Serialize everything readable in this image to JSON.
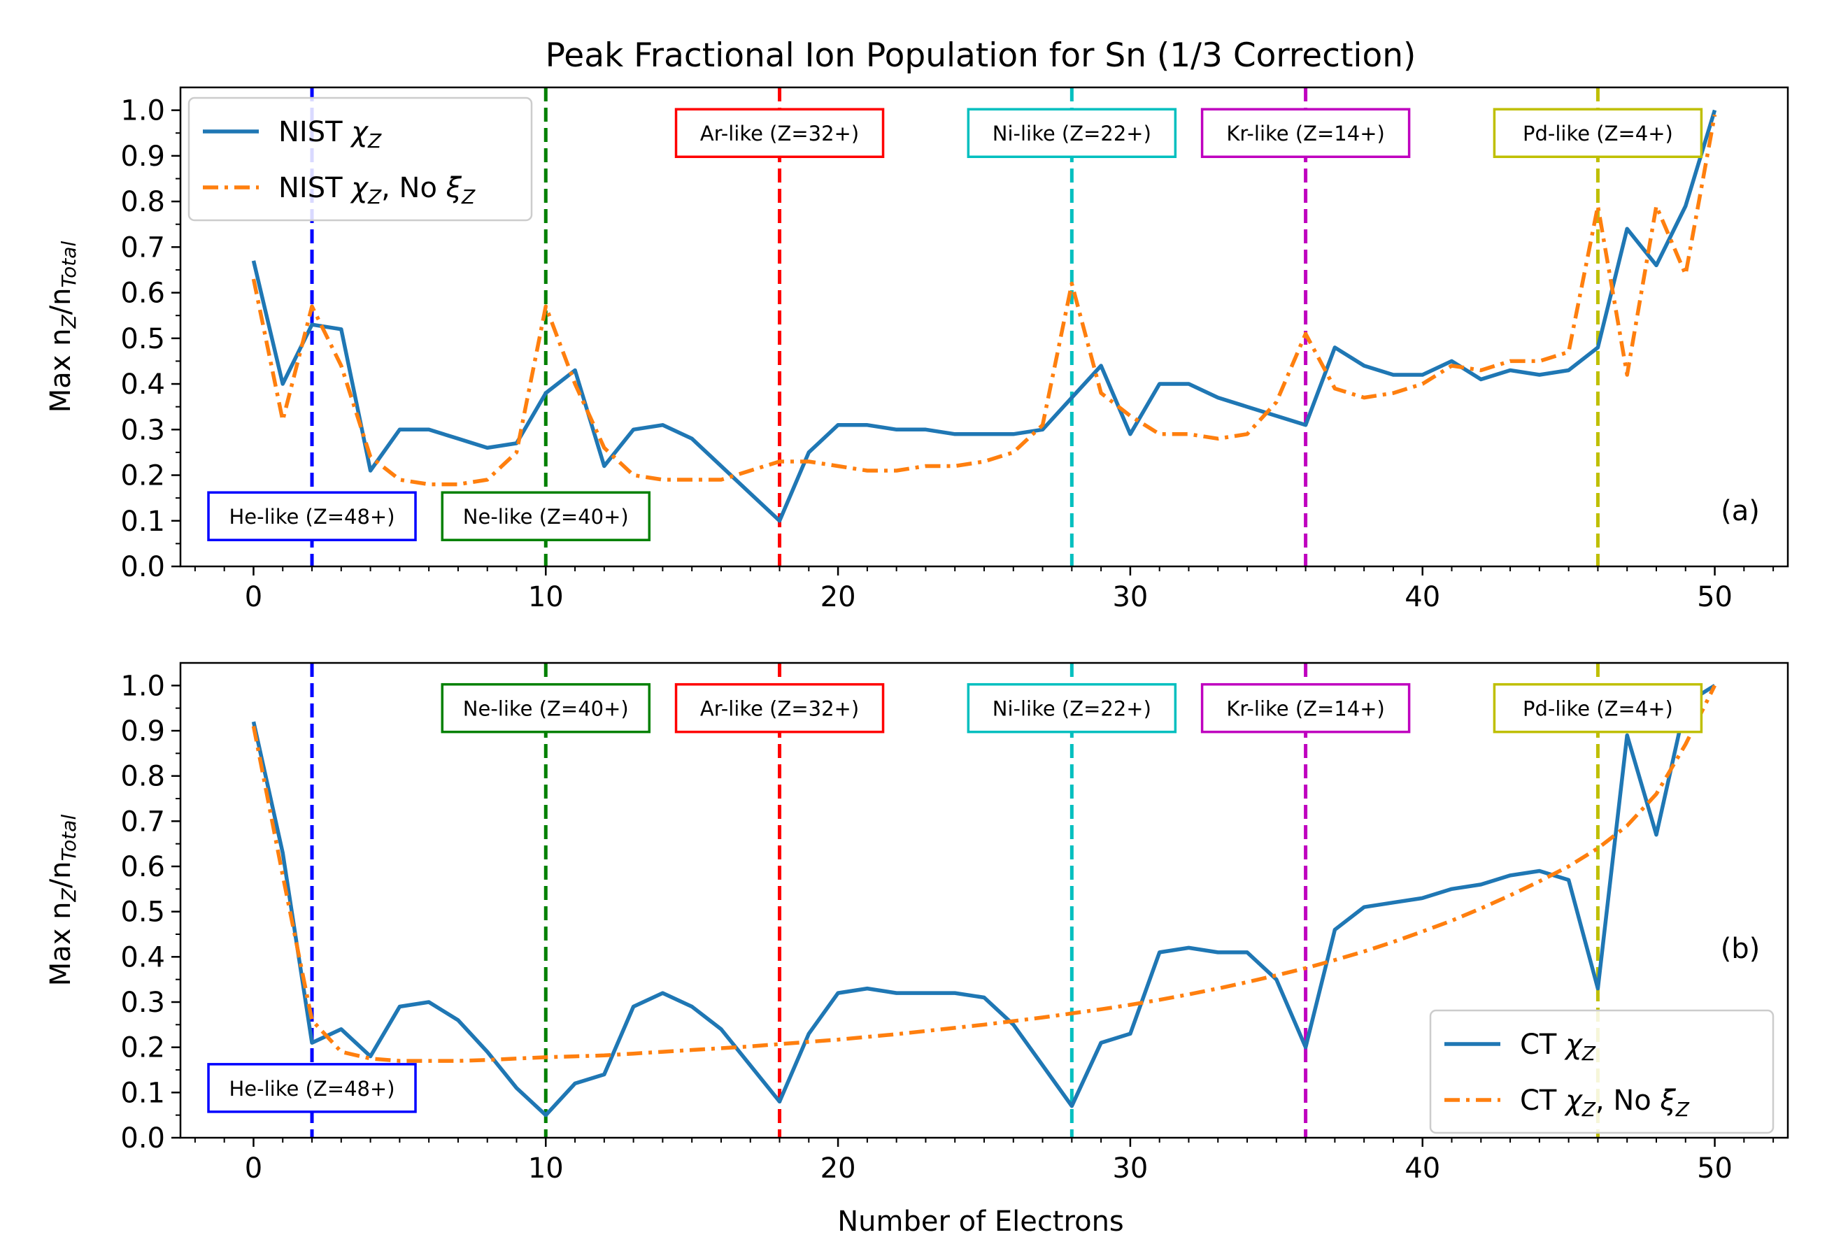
{
  "figure": {
    "title": "Peak Fractional Ion Population for Sn (1/3 Correction)",
    "xlabel": "Number of Electrons"
  },
  "colors": {
    "series_solid": "#1f77b4",
    "series_dashdot": "#ff7f0e",
    "He": "#0000ff",
    "Ne": "#008000",
    "Ar": "#ff0000",
    "Ni": "#00bfbf",
    "Kr": "#bf00bf",
    "Pd": "#bfbf00"
  },
  "chart_data": [
    {
      "type": "line",
      "panel_label": "(a)",
      "ylabel_main": "Max n",
      "ylabel_sub1": "Z",
      "ylabel_mid": "/n",
      "ylabel_sub2": "Total",
      "xlim": [
        -2.5,
        52.5
      ],
      "ylim": [
        0,
        1.05
      ],
      "xticks": [
        0,
        10,
        20,
        30,
        40,
        50
      ],
      "yticks": [
        0.0,
        0.1,
        0.2,
        0.3,
        0.4,
        0.5,
        0.6,
        0.7,
        0.8,
        0.9,
        1.0
      ],
      "ytick_labels": [
        "0.0",
        "0.1",
        "0.2",
        "0.3",
        "0.4",
        "0.5",
        "0.6",
        "0.7",
        "0.8",
        "0.9",
        "1.0"
      ],
      "legend_position": "upper-left",
      "series": [
        {
          "name": "NIST χZ",
          "legend_prefix": "NIST ",
          "legend_suffix": "",
          "style": "solid",
          "x": [
            0,
            1,
            2,
            3,
            4,
            5,
            6,
            7,
            8,
            9,
            10,
            11,
            12,
            13,
            14,
            15,
            16,
            17,
            18,
            19,
            20,
            21,
            22,
            23,
            24,
            25,
            26,
            27,
            28,
            29,
            30,
            31,
            32,
            33,
            34,
            35,
            36,
            37,
            38,
            39,
            40,
            41,
            42,
            43,
            44,
            45,
            46,
            47,
            48,
            49,
            50
          ],
          "y": [
            0.67,
            0.4,
            0.53,
            0.52,
            0.21,
            0.3,
            0.3,
            0.28,
            0.26,
            0.27,
            0.38,
            0.43,
            0.22,
            0.3,
            0.31,
            0.28,
            0.22,
            0.16,
            0.1,
            0.25,
            0.31,
            0.31,
            0.3,
            0.3,
            0.29,
            0.29,
            0.29,
            0.3,
            0.37,
            0.44,
            0.29,
            0.4,
            0.4,
            0.37,
            0.35,
            0.33,
            0.31,
            0.48,
            0.44,
            0.42,
            0.42,
            0.45,
            0.41,
            0.43,
            0.42,
            0.43,
            0.48,
            0.74,
            0.66,
            0.79,
            1.0
          ]
        },
        {
          "name": "NIST χZ, No ξZ",
          "legend_prefix": "NIST ",
          "legend_suffix": ", No ",
          "style": "dashdot",
          "x": [
            0,
            1,
            2,
            3,
            4,
            5,
            6,
            7,
            8,
            9,
            10,
            11,
            12,
            13,
            14,
            15,
            16,
            17,
            18,
            19,
            20,
            21,
            22,
            23,
            24,
            25,
            26,
            27,
            28,
            29,
            30,
            31,
            32,
            33,
            34,
            35,
            36,
            37,
            38,
            39,
            40,
            41,
            42,
            43,
            44,
            45,
            46,
            47,
            48,
            49,
            50
          ],
          "y": [
            0.63,
            0.32,
            0.57,
            0.44,
            0.24,
            0.19,
            0.18,
            0.18,
            0.19,
            0.25,
            0.57,
            0.4,
            0.26,
            0.2,
            0.19,
            0.19,
            0.19,
            0.21,
            0.23,
            0.23,
            0.22,
            0.21,
            0.21,
            0.22,
            0.22,
            0.23,
            0.25,
            0.31,
            0.62,
            0.38,
            0.33,
            0.29,
            0.29,
            0.28,
            0.29,
            0.36,
            0.51,
            0.39,
            0.37,
            0.38,
            0.4,
            0.44,
            0.43,
            0.45,
            0.45,
            0.47,
            0.79,
            0.42,
            0.79,
            0.64,
            0.99
          ]
        }
      ],
      "markers": [
        {
          "key": "He",
          "x": 2,
          "label": "He-like (Z=48+)",
          "label_x": 2,
          "label_y": 0.11
        },
        {
          "key": "Ne",
          "x": 10,
          "label": "Ne-like (Z=40+)",
          "label_x": 10,
          "label_y": 0.11
        },
        {
          "key": "Ar",
          "x": 18,
          "label": "Ar-like (Z=32+)",
          "label_x": 18,
          "label_y": 0.95
        },
        {
          "key": "Ni",
          "x": 28,
          "label": "Ni-like (Z=22+)",
          "label_x": 28,
          "label_y": 0.95
        },
        {
          "key": "Kr",
          "x": 36,
          "label": "Kr-like (Z=14+)",
          "label_x": 36,
          "label_y": 0.95
        },
        {
          "key": "Pd",
          "x": 46,
          "label": "Pd-like (Z=4+)",
          "label_x": 46,
          "label_y": 0.95
        }
      ]
    },
    {
      "type": "line",
      "panel_label": "(b)",
      "ylabel_main": "Max n",
      "ylabel_sub1": "Z",
      "ylabel_mid": "/n",
      "ylabel_sub2": "Total",
      "xlim": [
        -2.5,
        52.5
      ],
      "ylim": [
        0,
        1.05
      ],
      "xticks": [
        0,
        10,
        20,
        30,
        40,
        50
      ],
      "yticks": [
        0.0,
        0.1,
        0.2,
        0.3,
        0.4,
        0.5,
        0.6,
        0.7,
        0.8,
        0.9,
        1.0
      ],
      "ytick_labels": [
        "0.0",
        "0.1",
        "0.2",
        "0.3",
        "0.4",
        "0.5",
        "0.6",
        "0.7",
        "0.8",
        "0.9",
        "1.0"
      ],
      "legend_position": "lower-right",
      "series": [
        {
          "name": "CT χZ",
          "legend_prefix": "CT ",
          "legend_suffix": "",
          "style": "solid",
          "x": [
            0,
            1,
            2,
            3,
            4,
            5,
            6,
            7,
            8,
            9,
            10,
            11,
            12,
            13,
            14,
            15,
            16,
            17,
            18,
            19,
            20,
            21,
            22,
            23,
            24,
            25,
            26,
            27,
            28,
            29,
            30,
            31,
            32,
            33,
            34,
            35,
            36,
            37,
            38,
            39,
            40,
            41,
            42,
            43,
            44,
            45,
            46,
            47,
            48,
            49,
            50
          ],
          "y": [
            0.92,
            0.63,
            0.21,
            0.24,
            0.18,
            0.29,
            0.3,
            0.26,
            0.19,
            0.11,
            0.05,
            0.12,
            0.14,
            0.29,
            0.32,
            0.29,
            0.24,
            0.16,
            0.08,
            0.23,
            0.32,
            0.33,
            0.32,
            0.32,
            0.32,
            0.31,
            0.25,
            0.16,
            0.07,
            0.21,
            0.23,
            0.41,
            0.42,
            0.41,
            0.41,
            0.35,
            0.2,
            0.46,
            0.51,
            0.52,
            0.53,
            0.55,
            0.56,
            0.58,
            0.59,
            0.57,
            0.33,
            0.89,
            0.67,
            0.96,
            1.0
          ]
        },
        {
          "name": "CT χZ, No ξZ",
          "legend_prefix": "CT ",
          "legend_suffix": ", No ",
          "style": "dashdot",
          "x": [
            0,
            1,
            2,
            3,
            4,
            5,
            6,
            7,
            8,
            9,
            10,
            11,
            12,
            13,
            14,
            15,
            16,
            17,
            18,
            19,
            20,
            21,
            22,
            23,
            24,
            25,
            26,
            27,
            28,
            29,
            30,
            31,
            32,
            33,
            34,
            35,
            36,
            37,
            38,
            39,
            40,
            41,
            42,
            43,
            44,
            45,
            46,
            47,
            48,
            49,
            50
          ],
          "y": [
            0.91,
            0.58,
            0.26,
            0.19,
            0.175,
            0.17,
            0.17,
            0.17,
            0.172,
            0.175,
            0.178,
            0.18,
            0.182,
            0.186,
            0.19,
            0.194,
            0.198,
            0.202,
            0.207,
            0.212,
            0.217,
            0.223,
            0.229,
            0.236,
            0.243,
            0.25,
            0.258,
            0.266,
            0.275,
            0.284,
            0.294,
            0.305,
            0.317,
            0.33,
            0.344,
            0.359,
            0.375,
            0.393,
            0.412,
            0.433,
            0.456,
            0.48,
            0.507,
            0.536,
            0.567,
            0.6,
            0.64,
            0.69,
            0.76,
            0.87,
            1.0
          ]
        }
      ],
      "markers": [
        {
          "key": "He",
          "x": 2,
          "label": "He-like (Z=48+)",
          "label_x": 2,
          "label_y": 0.11
        },
        {
          "key": "Ne",
          "x": 10,
          "label": "Ne-like (Z=40+)",
          "label_x": 10,
          "label_y": 0.95
        },
        {
          "key": "Ar",
          "x": 18,
          "label": "Ar-like (Z=32+)",
          "label_x": 18,
          "label_y": 0.95
        },
        {
          "key": "Ni",
          "x": 28,
          "label": "Ni-like (Z=22+)",
          "label_x": 28,
          "label_y": 0.95
        },
        {
          "key": "Kr",
          "x": 36,
          "label": "Kr-like (Z=14+)",
          "label_x": 36,
          "label_y": 0.95
        },
        {
          "key": "Pd",
          "x": 46,
          "label": "Pd-like (Z=4+)",
          "label_x": 46,
          "label_y": 0.95
        }
      ]
    }
  ]
}
